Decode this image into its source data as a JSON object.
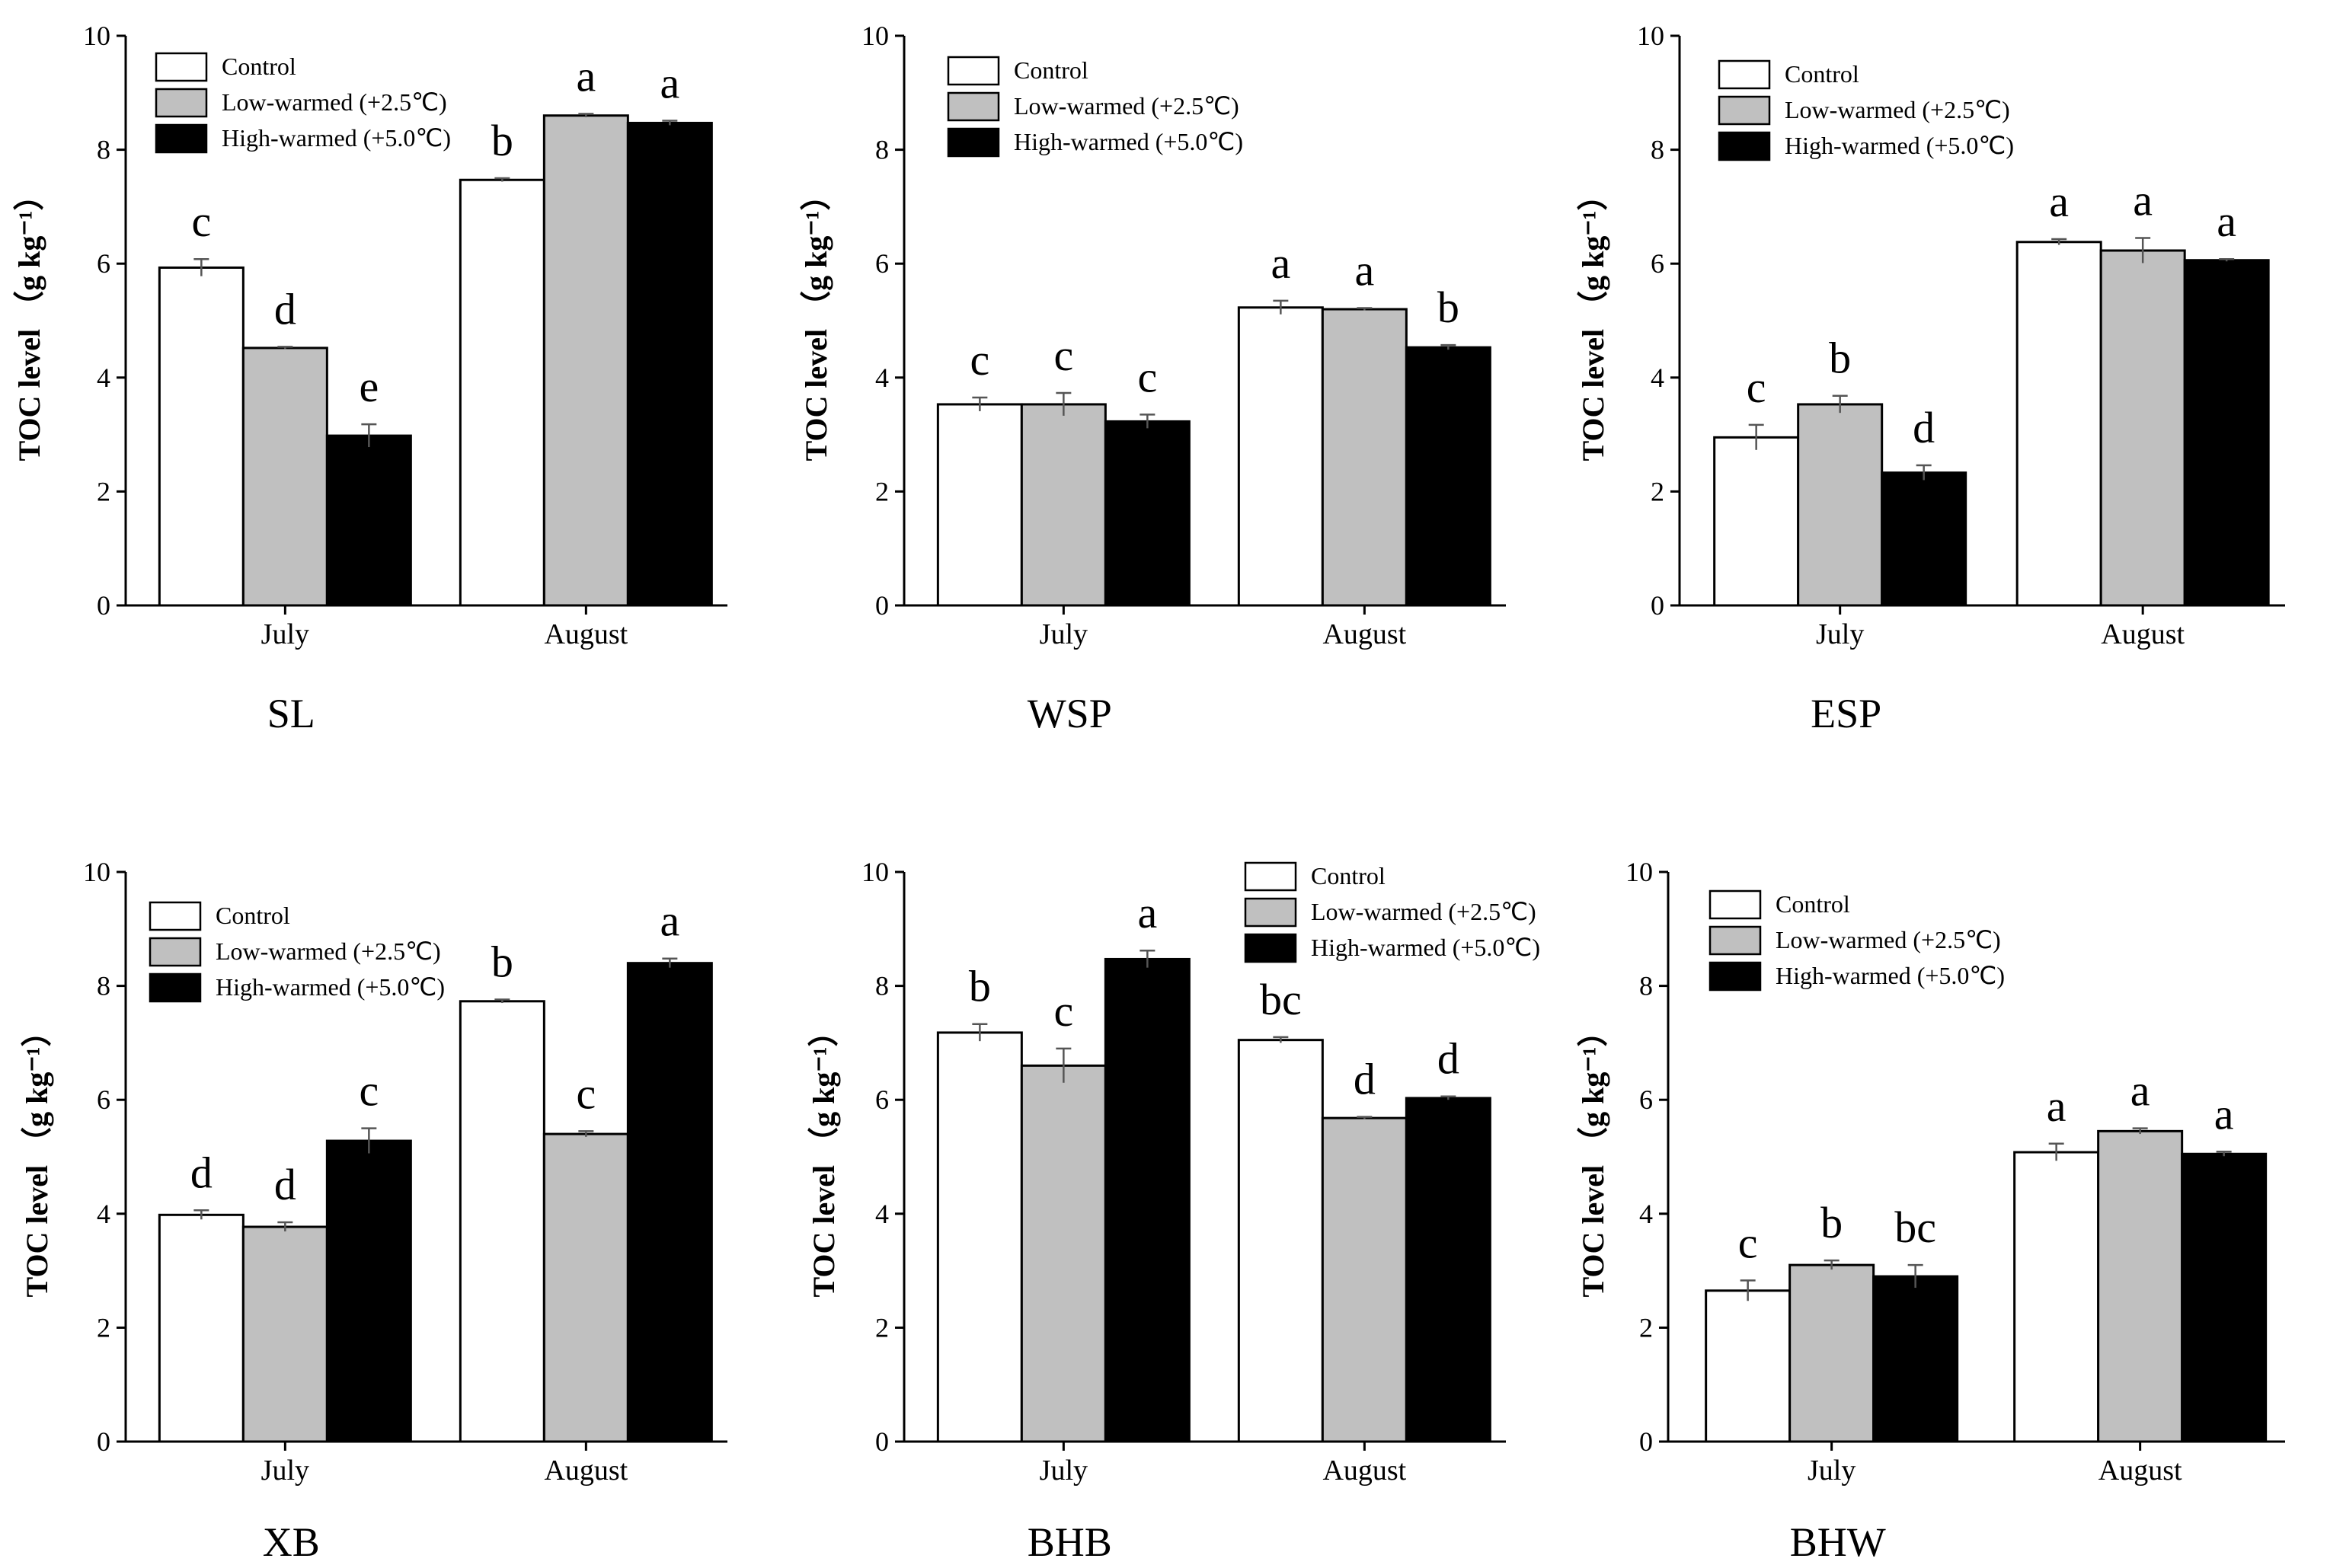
{
  "chart_data": [
    {
      "type": "bar",
      "site": "SL",
      "categories": [
        "July",
        "August"
      ],
      "series": [
        {
          "name": "Control",
          "values": [
            5.93,
            7.47
          ],
          "errors": [
            0.15,
            0.03
          ],
          "letters": [
            "c",
            "b"
          ],
          "color": "#ffffff"
        },
        {
          "name": "Low-warmed (+2.5℃)",
          "values": [
            4.52,
            8.6
          ],
          "errors": [
            0.02,
            0.03
          ],
          "letters": [
            "d",
            "a"
          ],
          "color": "#c0c0c0"
        },
        {
          "name": "High-warmed (+5.0℃)",
          "values": [
            2.98,
            8.47
          ],
          "errors": [
            0.2,
            0.04
          ],
          "letters": [
            "e",
            "a"
          ],
          "color": "#000000"
        }
      ],
      "ylabel": "TOC level （g kg⁻¹）",
      "ylim": [
        0,
        10
      ],
      "yticks": [
        "0",
        "2",
        "4",
        "6",
        "8",
        "10"
      ],
      "legend": "top-left"
    },
    {
      "type": "bar",
      "site": "WSP",
      "categories": [
        "July",
        "August"
      ],
      "series": [
        {
          "name": "Control",
          "values": [
            3.53,
            5.23
          ],
          "errors": [
            0.12,
            0.12
          ],
          "letters": [
            "c",
            "a"
          ],
          "color": "#ffffff"
        },
        {
          "name": "Low-warmed (+2.5℃)",
          "values": [
            3.53,
            5.2
          ],
          "errors": [
            0.2,
            0.02
          ],
          "letters": [
            "c",
            "a"
          ],
          "color": "#c0c0c0"
        },
        {
          "name": "High-warmed (+5.0℃)",
          "values": [
            3.23,
            4.53
          ],
          "errors": [
            0.12,
            0.04
          ],
          "letters": [
            "c",
            "b"
          ],
          "color": "#000000"
        }
      ],
      "ylabel": "TOC level （g kg⁻¹）",
      "ylim": [
        0,
        10
      ],
      "yticks": [
        "0",
        "2",
        "4",
        "6",
        "8",
        "10"
      ],
      "legend": "top-left"
    },
    {
      "type": "bar",
      "site": "ESP",
      "categories": [
        "July",
        "August"
      ],
      "series": [
        {
          "name": "Control",
          "values": [
            2.95,
            6.38
          ],
          "errors": [
            0.22,
            0.05
          ],
          "letters": [
            "c",
            "a"
          ],
          "color": "#ffffff"
        },
        {
          "name": "Low-warmed (+2.5℃)",
          "values": [
            3.53,
            6.23
          ],
          "errors": [
            0.15,
            0.22
          ],
          "letters": [
            "b",
            "a"
          ],
          "color": "#c0c0c0"
        },
        {
          "name": "High-warmed (+5.0℃)",
          "values": [
            2.33,
            6.06
          ],
          "errors": [
            0.13,
            0.02
          ],
          "letters": [
            "d",
            "a"
          ],
          "color": "#000000"
        }
      ],
      "ylabel": "TOC level （g kg⁻¹）",
      "ylim": [
        0,
        10
      ],
      "yticks": [
        "0",
        "2",
        "4",
        "6",
        "8",
        "10"
      ],
      "legend": "top-left"
    },
    {
      "type": "bar",
      "site": "XB",
      "categories": [
        "July",
        "August"
      ],
      "series": [
        {
          "name": "Control",
          "values": [
            3.98,
            7.73
          ],
          "errors": [
            0.08,
            0.03
          ],
          "letters": [
            "d",
            "b"
          ],
          "color": "#ffffff"
        },
        {
          "name": "Low-warmed (+2.5℃)",
          "values": [
            3.77,
            5.4
          ],
          "errors": [
            0.08,
            0.05
          ],
          "letters": [
            "d",
            "c"
          ],
          "color": "#c0c0c0"
        },
        {
          "name": "High-warmed (+5.0℃)",
          "values": [
            5.28,
            8.4
          ],
          "errors": [
            0.22,
            0.08
          ],
          "letters": [
            "c",
            "a"
          ],
          "color": "#000000"
        }
      ],
      "ylabel": "TOC level （g kg⁻¹）",
      "ylim": [
        0,
        10
      ],
      "yticks": [
        "0",
        "2",
        "4",
        "6",
        "8",
        "10"
      ],
      "legend": "top-left"
    },
    {
      "type": "bar",
      "site": "BHB",
      "categories": [
        "July",
        "August"
      ],
      "series": [
        {
          "name": "Control",
          "values": [
            7.18,
            7.05
          ],
          "errors": [
            0.15,
            0.05
          ],
          "letters": [
            "b",
            "bc"
          ],
          "color": "#ffffff"
        },
        {
          "name": "Low-warmed (+2.5℃)",
          "values": [
            6.6,
            5.68
          ],
          "errors": [
            0.3,
            0.02
          ],
          "letters": [
            "c",
            "d"
          ],
          "color": "#c0c0c0"
        },
        {
          "name": "High-warmed (+5.0℃)",
          "values": [
            8.47,
            6.03
          ],
          "errors": [
            0.15,
            0.03
          ],
          "letters": [
            "a",
            "d"
          ],
          "color": "#000000"
        }
      ],
      "ylabel": "TOC level （g kg⁻¹）",
      "ylim": [
        0,
        10
      ],
      "yticks": [
        "0",
        "2",
        "4",
        "6",
        "8",
        "10"
      ],
      "legend": "top-right"
    },
    {
      "type": "bar",
      "site": "BHW",
      "categories": [
        "July",
        "August"
      ],
      "series": [
        {
          "name": "Control",
          "values": [
            2.65,
            5.08
          ],
          "errors": [
            0.18,
            0.15
          ],
          "letters": [
            "c",
            "a"
          ],
          "color": "#ffffff"
        },
        {
          "name": "Low-warmed (+2.5℃)",
          "values": [
            3.1,
            5.45
          ],
          "errors": [
            0.08,
            0.05
          ],
          "letters": [
            "b",
            "a"
          ],
          "color": "#c0c0c0"
        },
        {
          "name": "High-warmed (+5.0℃)",
          "values": [
            2.9,
            5.05
          ],
          "errors": [
            0.2,
            0.04
          ],
          "letters": [
            "bc",
            "a"
          ],
          "color": "#000000"
        }
      ],
      "ylabel": "TOC level （g kg⁻¹）",
      "ylim": [
        0,
        10
      ],
      "yticks": [
        "0",
        "2",
        "4",
        "6",
        "8",
        "10"
      ],
      "legend": "top-left"
    }
  ]
}
